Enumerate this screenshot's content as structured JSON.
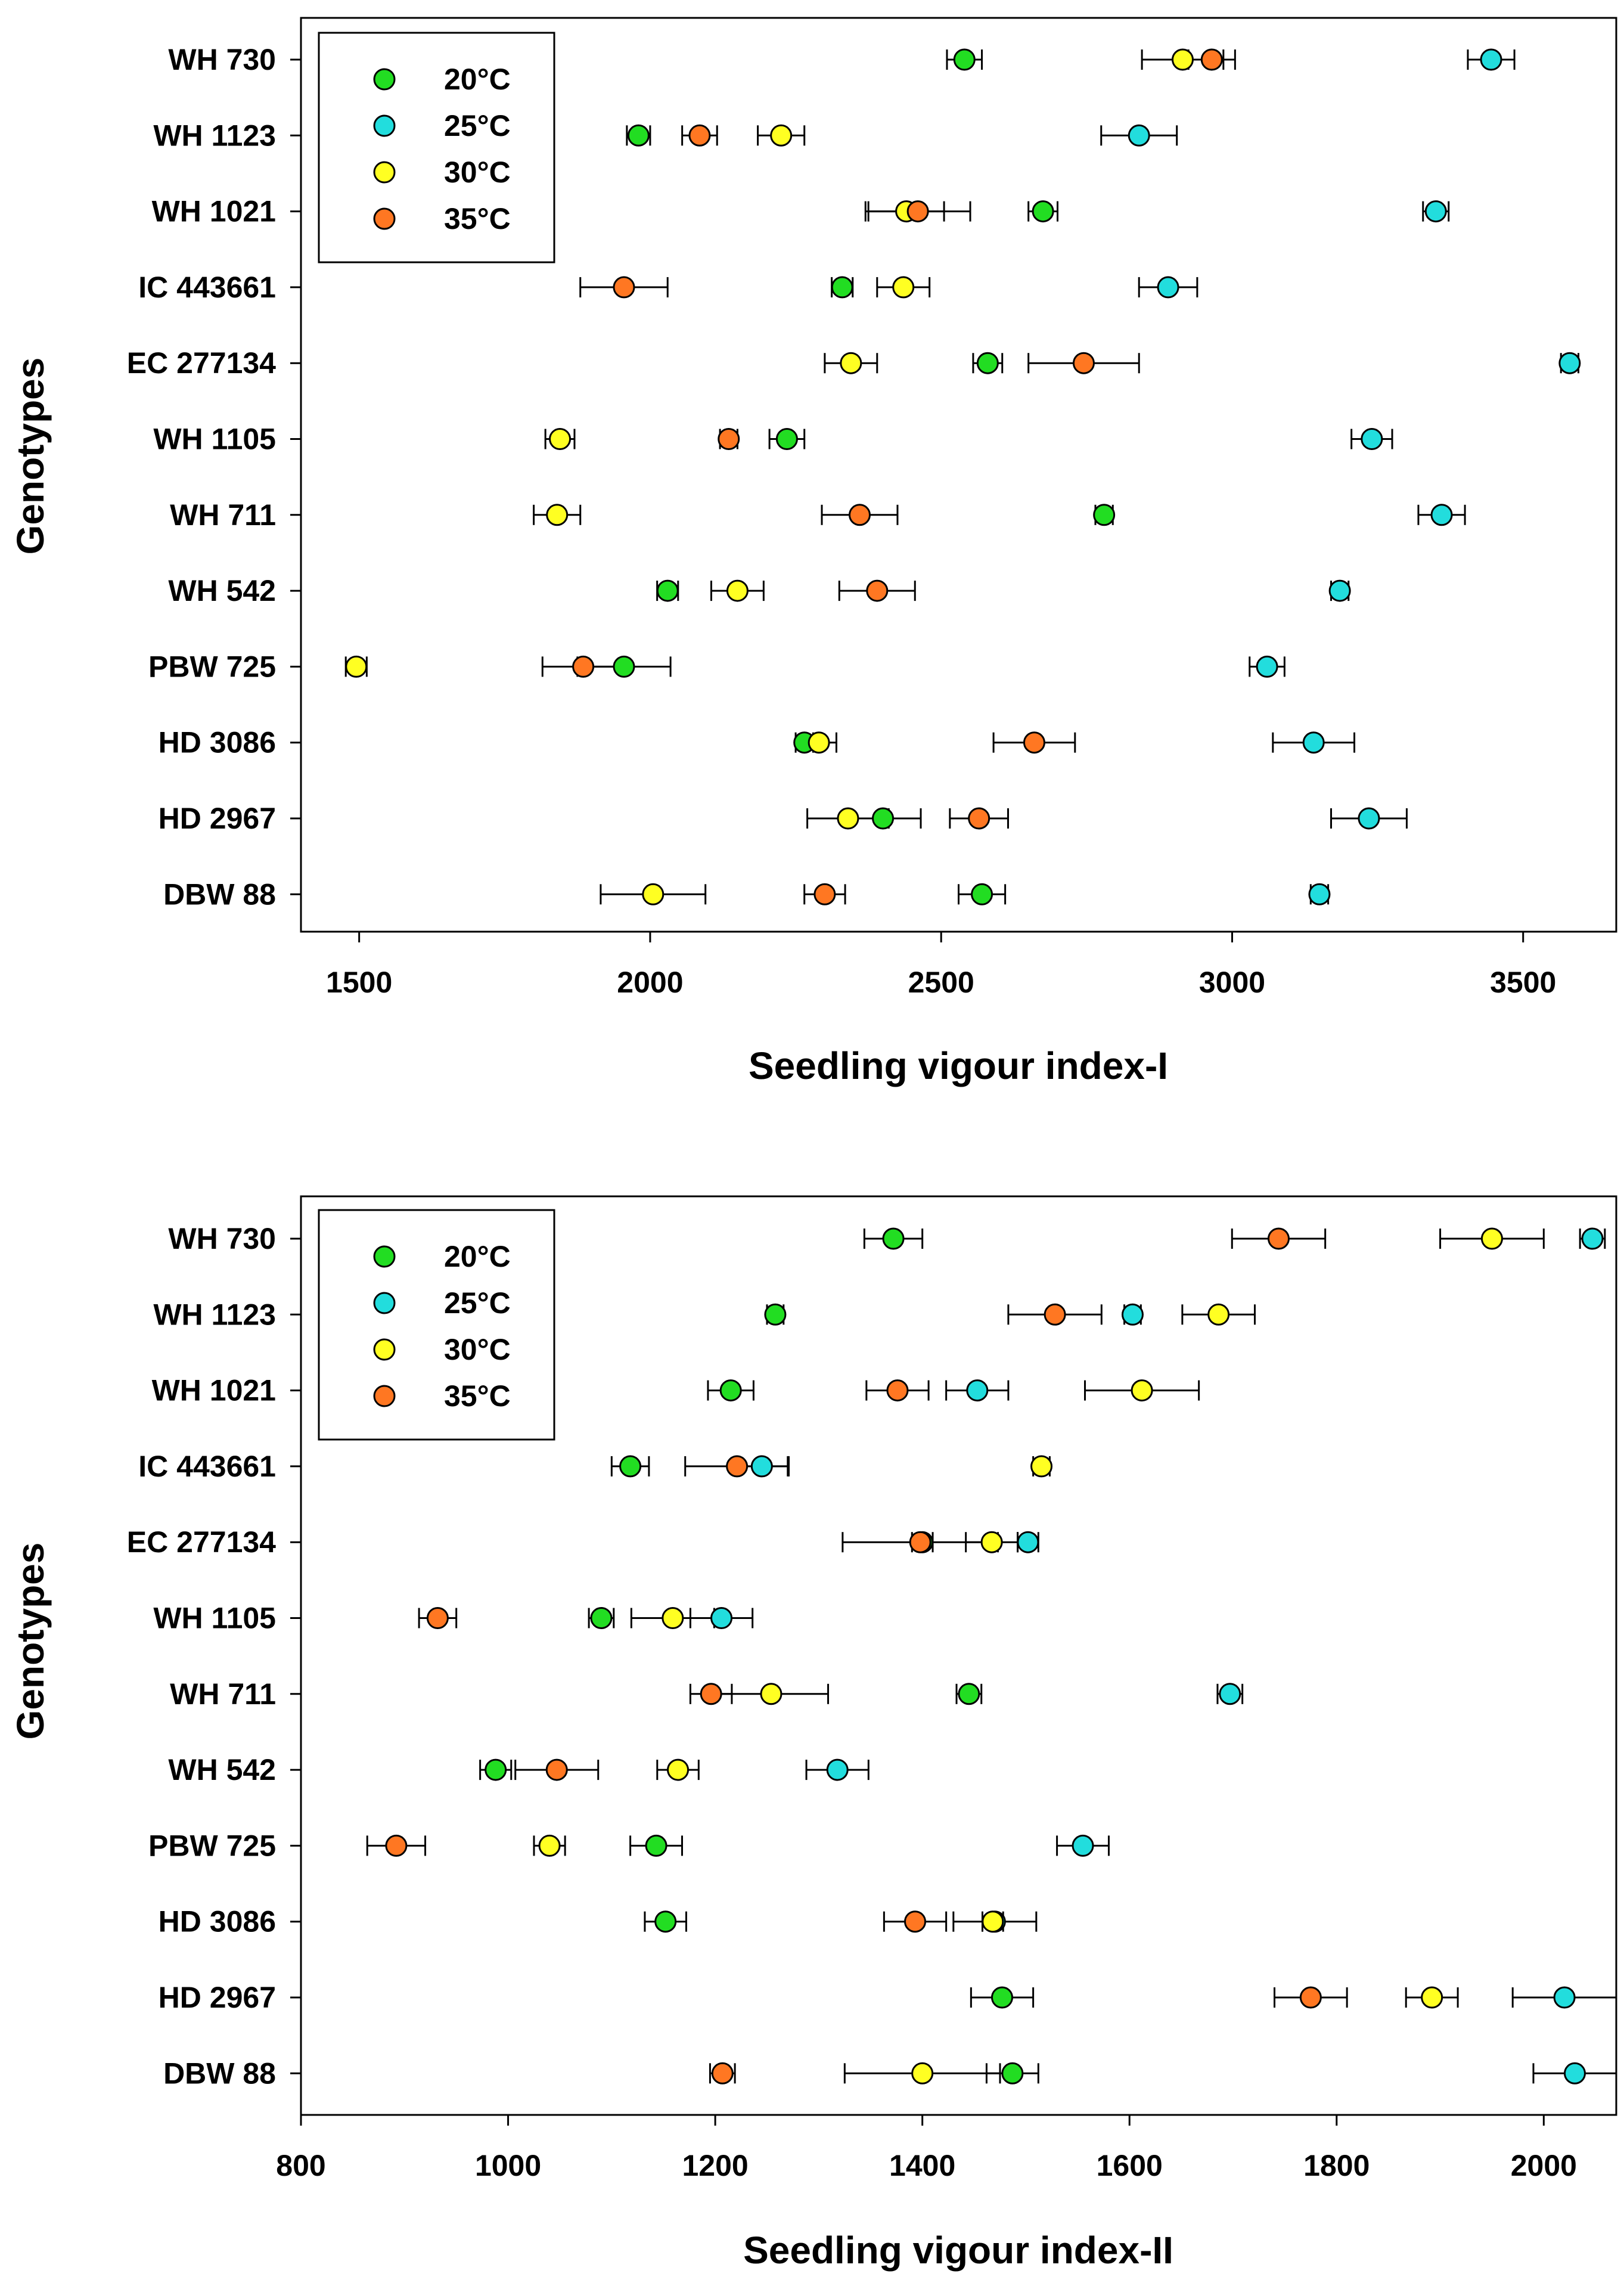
{
  "chart_data": [
    {
      "type": "scatter",
      "xlabel": "Seedling vigour index-I",
      "ylabel": "Genotypes",
      "xlim": [
        1400,
        3660
      ],
      "xticks": [
        1500,
        2000,
        2500,
        3000,
        3500
      ],
      "grid": false,
      "legend_position": "top-left",
      "categories": [
        "WH 730",
        "WH 1123",
        "WH 1021",
        "IC 443661",
        "EC 277134",
        "WH 1105",
        "WH 711",
        "WH 542",
        "PBW 725",
        "HD 3086",
        "HD 2967",
        "DBW 88"
      ],
      "series": [
        {
          "name": "20°C",
          "color": "#22dd22",
          "values": [
            2540,
            1980,
            2675,
            2330,
            2580,
            2235,
            2780,
            2030,
            1955,
            2265,
            2400,
            2570
          ],
          "errors": [
            30,
            20,
            25,
            18,
            25,
            30,
            15,
            18,
            80,
            15,
            65,
            40
          ]
        },
        {
          "name": "25°C",
          "color": "#22dddd",
          "values": [
            3445,
            2840,
            3350,
            2890,
            3580,
            3240,
            3360,
            3185,
            3060,
            3140,
            3235,
            3150
          ],
          "errors": [
            40,
            65,
            22,
            50,
            15,
            35,
            40,
            15,
            30,
            70,
            65,
            15
          ]
        },
        {
          "name": "30°C",
          "color": "#ffff22",
          "values": [
            2915,
            2225,
            2440,
            2435,
            2345,
            1845,
            1840,
            2150,
            1495,
            2290,
            2340,
            2005
          ],
          "errors": [
            70,
            40,
            65,
            45,
            45,
            25,
            40,
            45,
            18,
            30,
            70,
            90
          ]
        },
        {
          "name": "35°C",
          "color": "#ff7722",
          "values": [
            2965,
            2085,
            2460,
            1955,
            2745,
            2135,
            2360,
            2390,
            1885,
            2660,
            2565,
            2300
          ],
          "errors": [
            40,
            30,
            90,
            75,
            95,
            15,
            65,
            65,
            70,
            70,
            50,
            35
          ]
        }
      ]
    },
    {
      "type": "scatter",
      "xlabel": "Seedling vigour index-II",
      "ylabel": "Genotypes",
      "xlim": [
        800,
        2070
      ],
      "xticks": [
        800,
        1000,
        1200,
        1400,
        1600,
        1800,
        2000
      ],
      "grid": false,
      "legend_position": "top-left",
      "categories": [
        "WH 730",
        "WH 1123",
        "WH 1021",
        "IC 443661",
        "EC 277134",
        "WH 1105",
        "WH 711",
        "WH 542",
        "PBW 725",
        "HD 3086",
        "HD 2967",
        "DBW 88"
      ],
      "series": [
        {
          "name": "20°C",
          "color": "#22dd22",
          "values": [
            1372,
            1258,
            1215,
            1118,
            1400,
            1090,
            1445,
            988,
            1143,
            1152,
            1477,
            1487
          ],
          "errors": [
            28,
            8,
            22,
            18,
            10,
            12,
            12,
            15,
            25,
            20,
            30,
            25
          ]
        },
        {
          "name": "25°C",
          "color": "#22dddd",
          "values": [
            2047,
            1603,
            1453,
            1245,
            1502,
            1206,
            1697,
            1318,
            1555,
            1470,
            2020,
            2030
          ],
          "errors": [
            12,
            8,
            30,
            25,
            10,
            30,
            12,
            30,
            25,
            40,
            50,
            40
          ]
        },
        {
          "name": "30°C",
          "color": "#ffff22",
          "values": [
            1950,
            1686,
            1612,
            1515,
            1467,
            1159,
            1254,
            1164,
            1040,
            1468,
            1892,
            1400
          ],
          "errors": [
            50,
            35,
            55,
            8,
            25,
            40,
            55,
            20,
            15,
            10,
            25,
            75
          ]
        },
        {
          "name": "35°C",
          "color": "#ff7722",
          "values": [
            1744,
            1528,
            1376,
            1221,
            1398,
            932,
            1196,
            1047,
            892,
            1393,
            1775,
            1207
          ],
          "errors": [
            45,
            45,
            30,
            50,
            75,
            18,
            20,
            40,
            28,
            30,
            35,
            12
          ]
        }
      ]
    }
  ]
}
